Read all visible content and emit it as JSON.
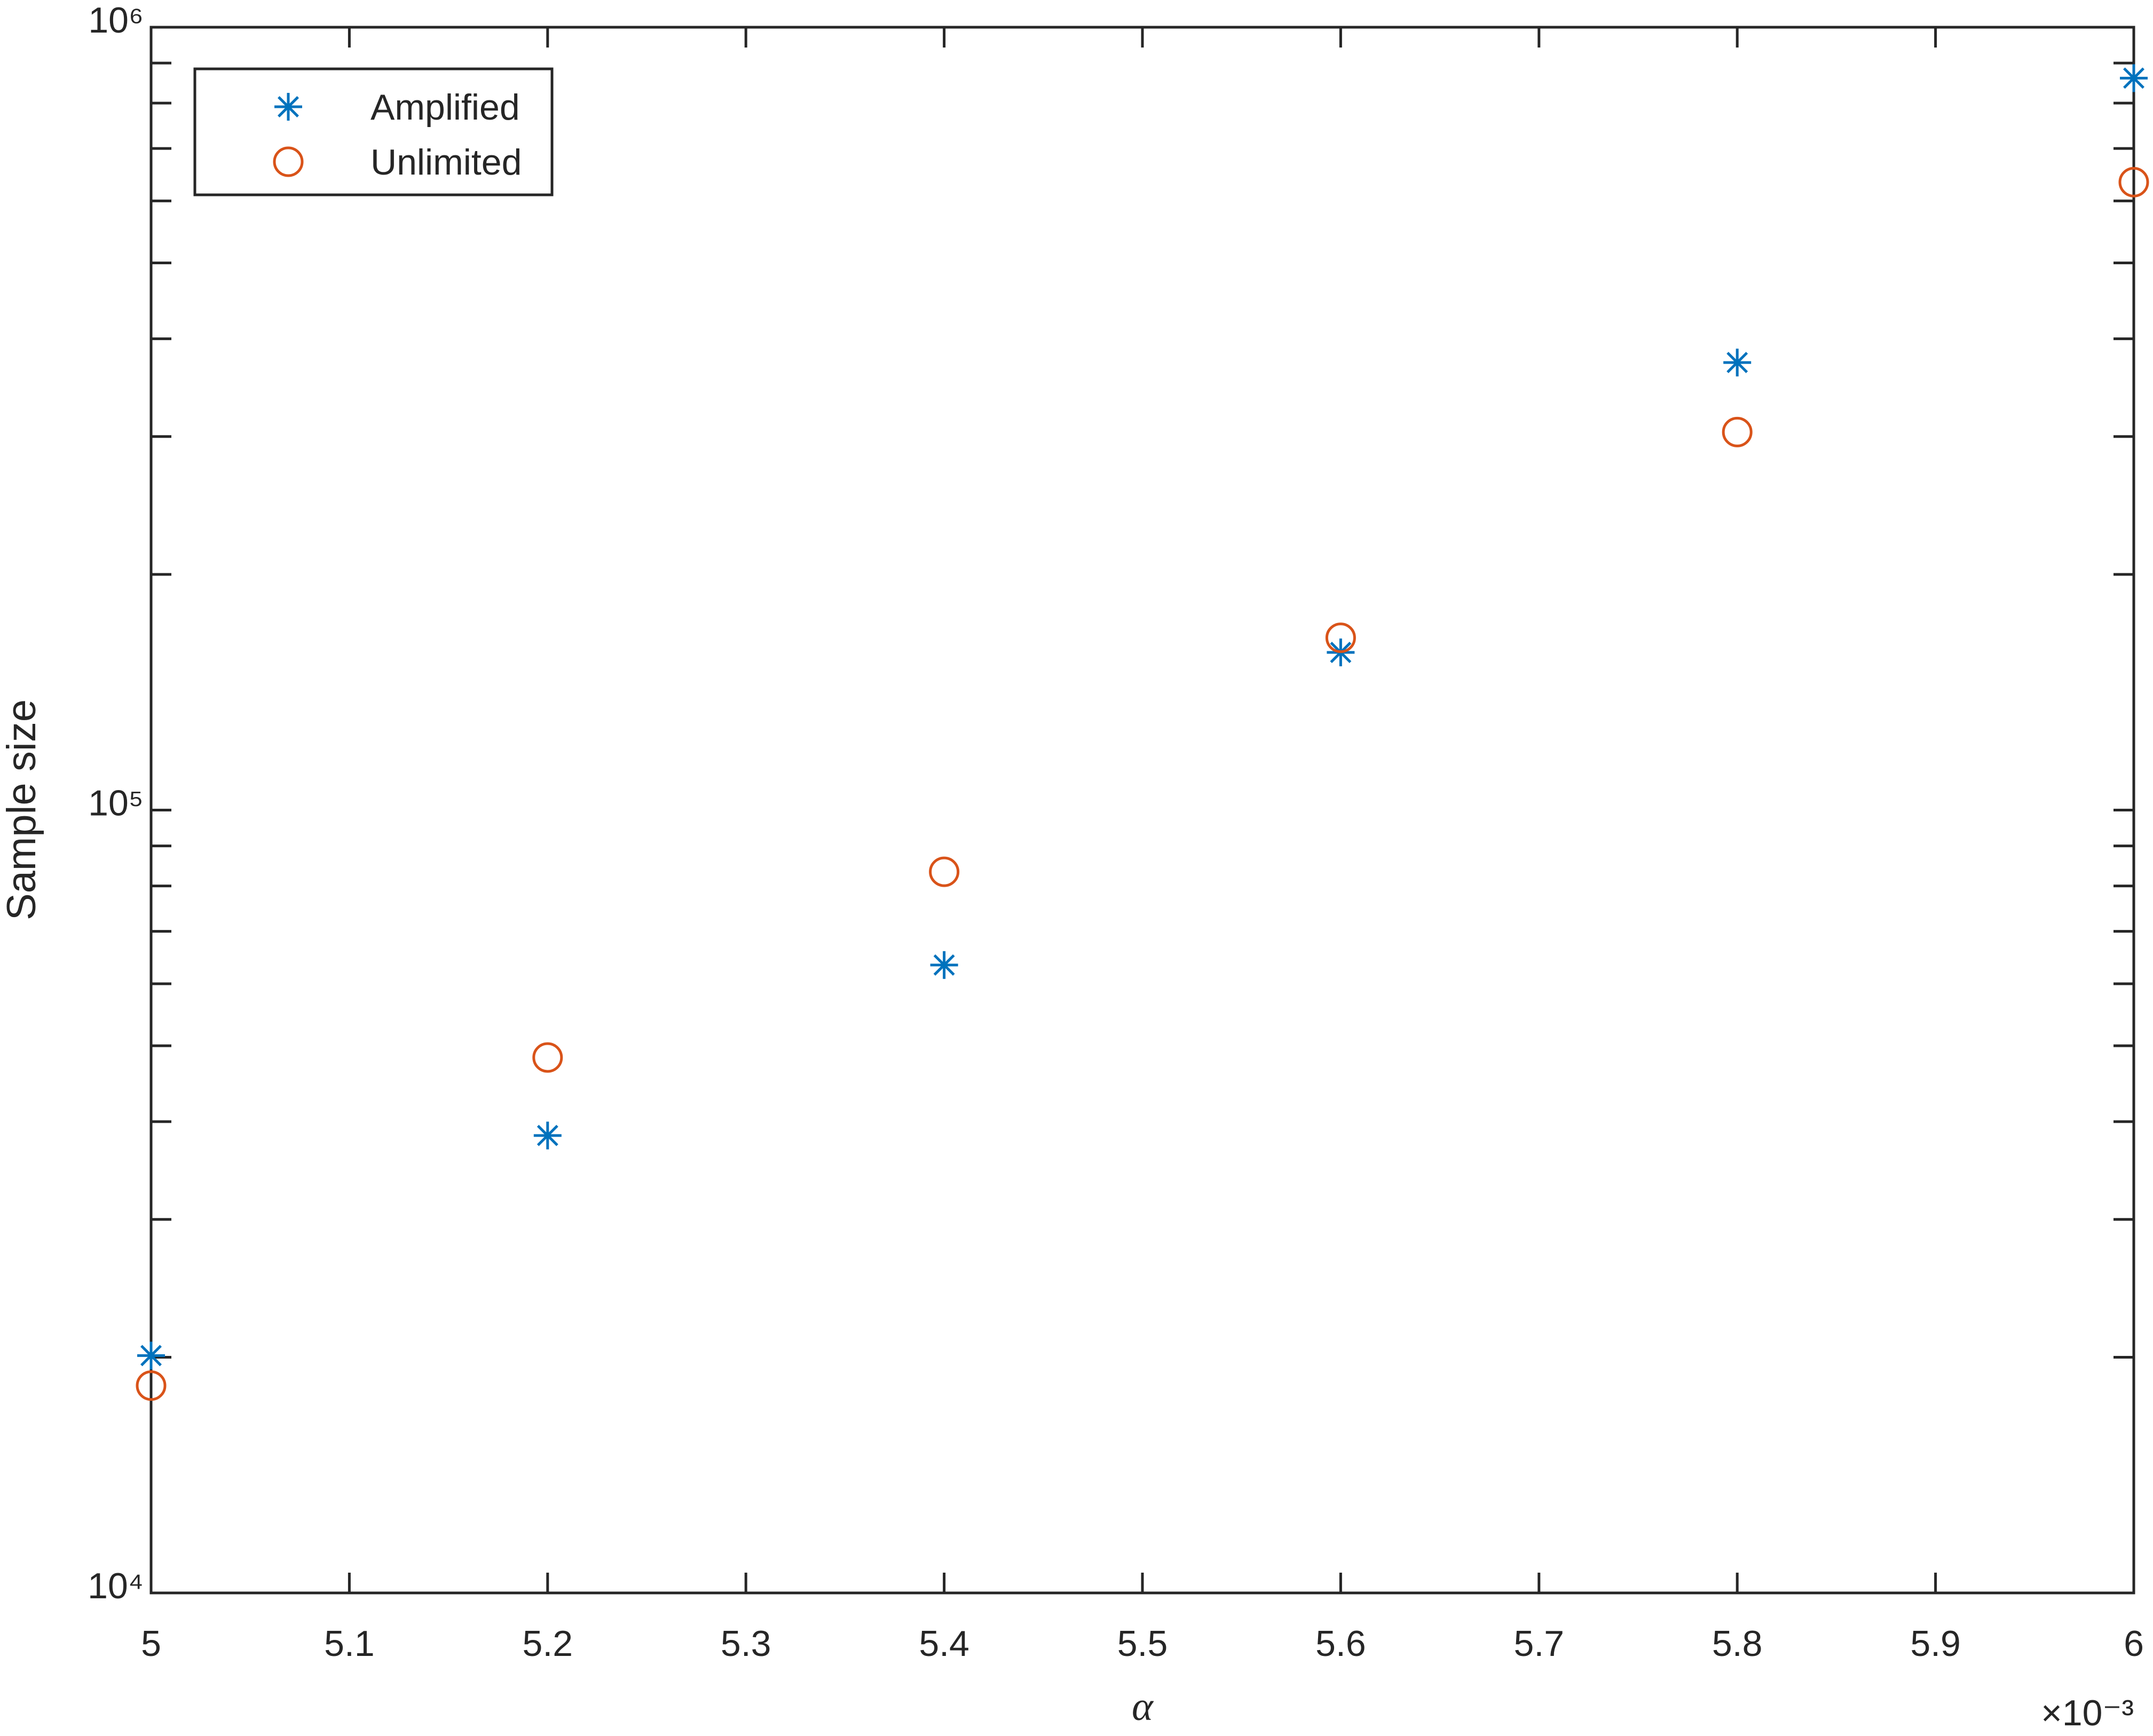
{
  "chart_data": {
    "type": "scatter",
    "xlabel": "α",
    "ylabel": "Sample size",
    "x_multiplier": "×10⁻³",
    "x": [
      5.0,
      5.2,
      5.4,
      5.6,
      5.8,
      6.0
    ],
    "series": [
      {
        "name": "Amplified",
        "color": "#0072BD",
        "marker": "asterisk",
        "values": [
          20100,
          38400,
          63400,
          159000,
          373000,
          861000
        ]
      },
      {
        "name": "Unlimited",
        "color": "#D95319",
        "marker": "circle",
        "values": [
          18400,
          48300,
          83400,
          166000,
          304000,
          634000
        ]
      }
    ],
    "xlim": [
      5,
      6
    ],
    "xticks": [
      5,
      5.1,
      5.2,
      5.3,
      5.4,
      5.5,
      5.6,
      5.7,
      5.8,
      5.9,
      6
    ],
    "ylim": [
      10000,
      1000000
    ],
    "yscale": "log",
    "yticks": [
      {
        "value": 10000,
        "label": "10⁴"
      },
      {
        "value": 100000,
        "label": "10⁵"
      },
      {
        "value": 1000000,
        "label": "10⁶"
      }
    ],
    "yticks_minor": [
      20000,
      30000,
      40000,
      50000,
      60000,
      70000,
      80000,
      90000,
      200000,
      300000,
      400000,
      500000,
      600000,
      700000,
      800000,
      900000
    ],
    "legend": "upper-left",
    "grid": false
  }
}
